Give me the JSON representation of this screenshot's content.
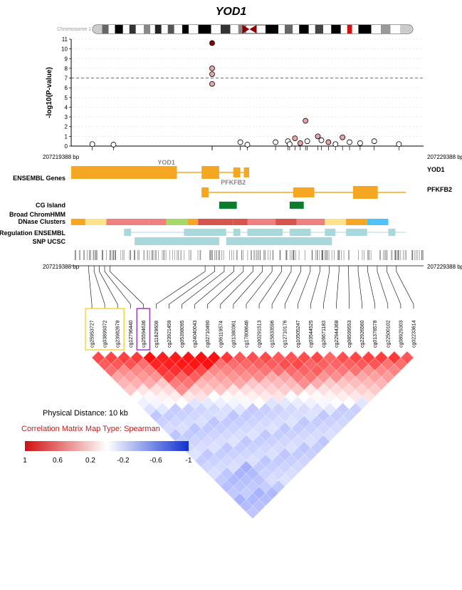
{
  "title": "YOD1",
  "chrom_label": "Chromosome 1",
  "manhattan": {
    "ylabel": "-log10(P-value)",
    "ylim": [
      0,
      11
    ],
    "ytick_step": 1,
    "threshold": 7,
    "threshold_color": "#d94545",
    "grid_color": "#e0e0e0",
    "bg": "#ffffff",
    "marker_stroke": "#000000",
    "marker_r": 3.5,
    "points": [
      {
        "x": 0.06,
        "y": 0.2,
        "fill": "#ffffff"
      },
      {
        "x": 0.12,
        "y": 0.15,
        "fill": "#ffffff"
      },
      {
        "x": 0.4,
        "y": 10.6,
        "fill": "#8b0000"
      },
      {
        "x": 0.4,
        "y": 8.0,
        "fill": "#e8a5a5"
      },
      {
        "x": 0.4,
        "y": 7.4,
        "fill": "#e8a5a5"
      },
      {
        "x": 0.4,
        "y": 6.4,
        "fill": "#e8a5a5"
      },
      {
        "x": 0.48,
        "y": 0.4,
        "fill": "#ffffff"
      },
      {
        "x": 0.5,
        "y": 0.15,
        "fill": "#ffffff"
      },
      {
        "x": 0.58,
        "y": 0.4,
        "fill": "#ffffff"
      },
      {
        "x": 0.615,
        "y": 0.5,
        "fill": "#ffffff"
      },
      {
        "x": 0.62,
        "y": 0.2,
        "fill": "#ffffff"
      },
      {
        "x": 0.635,
        "y": 0.8,
        "fill": "#e8a5a5"
      },
      {
        "x": 0.65,
        "y": 0.3,
        "fill": "#e8a5a5"
      },
      {
        "x": 0.665,
        "y": 2.6,
        "fill": "#e8a5a5"
      },
      {
        "x": 0.67,
        "y": 0.5,
        "fill": "#ffffff"
      },
      {
        "x": 0.7,
        "y": 1.0,
        "fill": "#e8a5a5"
      },
      {
        "x": 0.71,
        "y": 0.6,
        "fill": "#ffffff"
      },
      {
        "x": 0.73,
        "y": 0.4,
        "fill": "#e8a5a5"
      },
      {
        "x": 0.75,
        "y": 0.2,
        "fill": "#ffffff"
      },
      {
        "x": 0.77,
        "y": 0.9,
        "fill": "#e8a5a5"
      },
      {
        "x": 0.79,
        "y": 0.4,
        "fill": "#ffffff"
      },
      {
        "x": 0.82,
        "y": 0.3,
        "fill": "#ffffff"
      },
      {
        "x": 0.86,
        "y": 0.5,
        "fill": "#ffffff"
      },
      {
        "x": 0.93,
        "y": 0.2,
        "fill": "#ffffff"
      }
    ],
    "tick_positions": [
      0.06,
      0.12,
      0.4,
      0.4,
      0.48,
      0.5,
      0.58,
      0.615,
      0.62,
      0.635,
      0.65,
      0.665,
      0.67,
      0.7,
      0.71,
      0.73,
      0.75,
      0.77,
      0.79,
      0.82,
      0.86,
      0.93
    ]
  },
  "coords": {
    "left": "207219388 bp",
    "right": "207229388 bp"
  },
  "tracks": {
    "ensembl_label": "ENSEMBL Genes",
    "cgisland_label": "CG Island",
    "chromhmm_label": "Broad ChromHMM",
    "dnase_label": "DNase Clusters",
    "regens_label": "Regulation ENSEMBL",
    "snp_label": "SNP UCSC",
    "gene1": "YOD1",
    "gene2": "PFKFB2",
    "gene_color": "#f5a623",
    "dnase_colors": [
      "#f5a623",
      "#fde38a",
      "#f08080",
      "#f08080",
      "#a6d96a",
      "#f5a623",
      "#d9534f",
      "#d9534f",
      "#f08080",
      "#d9534f",
      "#f08080",
      "#fde38a",
      "#f5a623",
      "#4fc3f7"
    ],
    "cgisland_color": "#0a7d2c",
    "reg_color": "#a8d8dc"
  },
  "cg_ids": [
    "cg25953727",
    "cg03899372",
    "cg23982678",
    "cg12796440",
    "cg25594636",
    "cg11829608",
    "cg23921459",
    "cg05398095",
    "cg24040043",
    "cg02710490",
    "cg06119574",
    "cg01380361",
    "cg17808646",
    "cg00291513",
    "cg15833596",
    "cg12710176",
    "cg10505247",
    "cg03544525",
    "cg26671183",
    "cg22944368",
    "cg08599553",
    "cg22926560",
    "cg01378578",
    "cg22500102",
    "cg08929303",
    "cg02233614"
  ],
  "highlight_boxes": [
    {
      "start": 0,
      "end": 3,
      "color": "#f5d742"
    },
    {
      "start": 4,
      "end": 5,
      "color": "#9b3fb5"
    }
  ],
  "heatmap": {
    "n": 26,
    "info1": "Physical Distance: 10 kb",
    "info2": "Correlation Matrix Map Type: Spearman",
    "scale_labels": [
      "1",
      "0.6",
      "0.2",
      "-0.2",
      "-0.6",
      "-1"
    ],
    "color_neg": "#1030d0",
    "color_zero": "#ffffff",
    "color_pos": "#d01010"
  },
  "ideogram": {
    "bands": [
      {
        "x": 0,
        "w": 0.03,
        "c": "#cccccc"
      },
      {
        "x": 0.03,
        "w": 0.02,
        "c": "#666666"
      },
      {
        "x": 0.05,
        "w": 0.02,
        "c": "#ffffff"
      },
      {
        "x": 0.07,
        "w": 0.025,
        "c": "#000000"
      },
      {
        "x": 0.095,
        "w": 0.02,
        "c": "#ffffff"
      },
      {
        "x": 0.115,
        "w": 0.02,
        "c": "#333333"
      },
      {
        "x": 0.135,
        "w": 0.025,
        "c": "#ffffff"
      },
      {
        "x": 0.16,
        "w": 0.02,
        "c": "#888888"
      },
      {
        "x": 0.18,
        "w": 0.015,
        "c": "#ffffff"
      },
      {
        "x": 0.195,
        "w": 0.02,
        "c": "#222222"
      },
      {
        "x": 0.215,
        "w": 0.02,
        "c": "#ffffff"
      },
      {
        "x": 0.235,
        "w": 0.02,
        "c": "#555555"
      },
      {
        "x": 0.255,
        "w": 0.025,
        "c": "#ffffff"
      },
      {
        "x": 0.28,
        "w": 0.02,
        "c": "#000000"
      },
      {
        "x": 0.3,
        "w": 0.03,
        "c": "#ffffff"
      },
      {
        "x": 0.33,
        "w": 0.04,
        "c": "#000000"
      },
      {
        "x": 0.37,
        "w": 0.03,
        "c": "#ffffff"
      },
      {
        "x": 0.4,
        "w": 0.03,
        "c": "#333333"
      },
      {
        "x": 0.43,
        "w": 0.025,
        "c": "#ffffff"
      },
      {
        "x": 0.455,
        "w": 0.025,
        "c": "#888888"
      },
      {
        "x": 0.54,
        "w": 0.04,
        "c": "#000000"
      },
      {
        "x": 0.58,
        "w": 0.02,
        "c": "#ffffff"
      },
      {
        "x": 0.6,
        "w": 0.025,
        "c": "#666666"
      },
      {
        "x": 0.625,
        "w": 0.02,
        "c": "#ffffff"
      },
      {
        "x": 0.645,
        "w": 0.03,
        "c": "#000000"
      },
      {
        "x": 0.675,
        "w": 0.02,
        "c": "#ffffff"
      },
      {
        "x": 0.695,
        "w": 0.025,
        "c": "#444444"
      },
      {
        "x": 0.72,
        "w": 0.025,
        "c": "#ffffff"
      },
      {
        "x": 0.745,
        "w": 0.03,
        "c": "#000000"
      },
      {
        "x": 0.775,
        "w": 0.02,
        "c": "#ffffff"
      },
      {
        "x": 0.795,
        "w": 0.015,
        "c": "#d01010"
      },
      {
        "x": 0.81,
        "w": 0.02,
        "c": "#ffffff"
      },
      {
        "x": 0.83,
        "w": 0.04,
        "c": "#000000"
      },
      {
        "x": 0.87,
        "w": 0.03,
        "c": "#ffffff"
      },
      {
        "x": 0.9,
        "w": 0.03,
        "c": "#999999"
      },
      {
        "x": 0.93,
        "w": 0.03,
        "c": "#ffffff"
      },
      {
        "x": 0.96,
        "w": 0.04,
        "c": "#cccccc"
      }
    ],
    "centromere_x": 0.49
  }
}
